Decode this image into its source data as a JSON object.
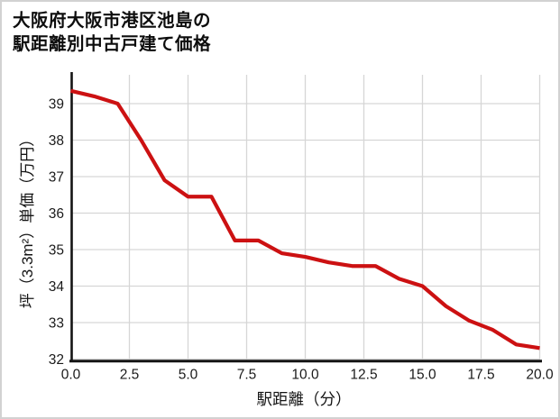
{
  "title": {
    "line1": "大阪府大阪市港区池島の",
    "line2": "駅距離別中古戸建て価格"
  },
  "colors": {
    "line": "#cc1112",
    "grid": "#d6d6d6",
    "axis": "#141414",
    "tick_text": "#1a1a1a",
    "background": "#ffffff",
    "border": "#d2d2d2"
  },
  "chart_data": {
    "type": "line",
    "title": "大阪府大阪市港区池島の駅距離別中古戸建て価格",
    "xlabel": "駅距離（分）",
    "ylabel": "坪（3.3m²）単価（万円）",
    "x": [
      0,
      1,
      2,
      3,
      4,
      5,
      6,
      7,
      8,
      9,
      10,
      11,
      12,
      13,
      14,
      15,
      16,
      17,
      18,
      19,
      20
    ],
    "values": [
      39.35,
      39.2,
      39.0,
      38.0,
      36.9,
      36.45,
      36.45,
      35.25,
      35.25,
      34.9,
      34.8,
      34.65,
      34.55,
      34.55,
      34.2,
      34.0,
      33.45,
      33.05,
      32.8,
      32.4,
      32.3
    ],
    "xticks": [
      "0.0",
      "2.5",
      "5.0",
      "7.5",
      "10.0",
      "12.5",
      "15.0",
      "17.5",
      "20.0"
    ],
    "xtick_values": [
      0,
      2.5,
      5,
      7.5,
      10,
      12.5,
      15,
      17.5,
      20
    ],
    "yticks": [
      "32",
      "33",
      "34",
      "35",
      "36",
      "37",
      "38",
      "39"
    ],
    "ytick_values": [
      32,
      33,
      34,
      35,
      36,
      37,
      38,
      39
    ],
    "xlim": [
      0,
      20
    ],
    "ylim": [
      32,
      39.8
    ],
    "grid": true,
    "legend": "none"
  }
}
